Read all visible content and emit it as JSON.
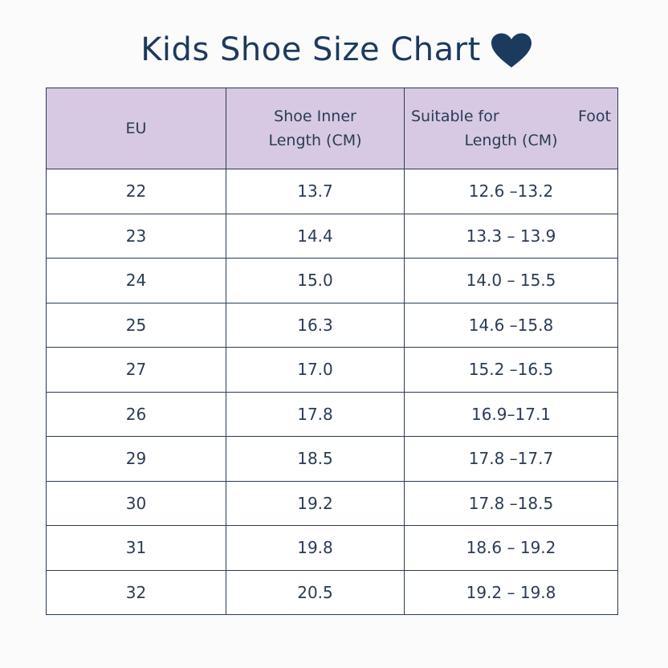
{
  "title": "Kids Shoe Size Chart",
  "title_icon": "heart-icon",
  "colors": {
    "title": "#1c3a5e",
    "header_bg": "#d7c9e3",
    "border": "#2a3b55"
  },
  "table": {
    "headers": {
      "eu": "EU",
      "inner_line1": "Shoe Inner",
      "inner_line2": "Length (CM)",
      "foot_line1a": "Suitable for",
      "foot_line1b": "Foot",
      "foot_line2": "Length (CM)"
    },
    "rows": [
      {
        "eu": "22",
        "inner": "13.7",
        "foot": "12.6 –13.2"
      },
      {
        "eu": "23",
        "inner": "14.4",
        "foot": "13.3 – 13.9"
      },
      {
        "eu": "24",
        "inner": "15.0",
        "foot": "14.0 – 15.5"
      },
      {
        "eu": "25",
        "inner": "16.3",
        "foot": "14.6 –15.8"
      },
      {
        "eu": "27",
        "inner": "17.0",
        "foot": "15.2 –16.5"
      },
      {
        "eu": "26",
        "inner": "17.8",
        "foot": "16.9–17.1"
      },
      {
        "eu": "29",
        "inner": "18.5",
        "foot": "17.8 –17.7"
      },
      {
        "eu": "30",
        "inner": "19.2",
        "foot": "17.8 –18.5"
      },
      {
        "eu": "31",
        "inner": "19.8",
        "foot": "18.6 – 19.2"
      },
      {
        "eu": "32",
        "inner": "20.5",
        "foot": "19.2 – 19.8"
      }
    ]
  }
}
